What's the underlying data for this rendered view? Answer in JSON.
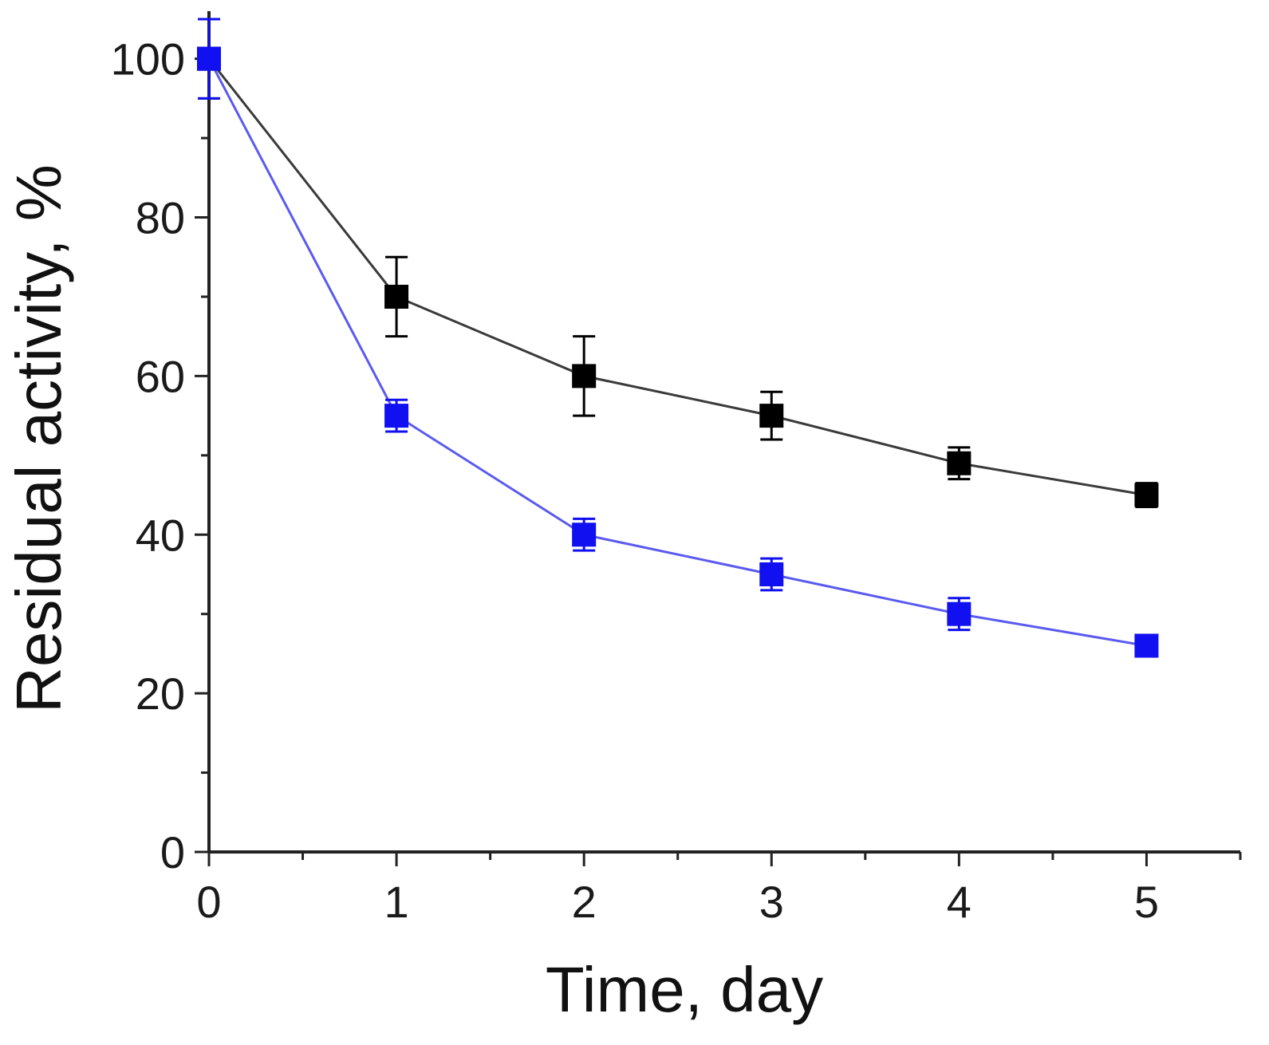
{
  "chart_data": {
    "type": "line",
    "title": "",
    "xlabel": "Time, day",
    "ylabel": "Residual activity, %",
    "xlim": [
      0,
      5.5
    ],
    "ylim": [
      0,
      106
    ],
    "x_ticks": [
      0,
      1,
      2,
      3,
      4,
      5
    ],
    "y_ticks": [
      0,
      20,
      40,
      60,
      80,
      100
    ],
    "x_minor_step": 0.5,
    "y_minor_step": 10,
    "grid": false,
    "series": [
      {
        "name": "black",
        "color": "#000000",
        "line_color": "#3a3a3a",
        "x": [
          0,
          1,
          2,
          3,
          4,
          5
        ],
        "y": [
          100,
          70,
          60,
          55,
          49,
          45
        ],
        "err": [
          5,
          5,
          5,
          3,
          2,
          1.5
        ]
      },
      {
        "name": "blue",
        "color": "#1010f0",
        "line_color": "#5a5af0",
        "x": [
          0,
          1,
          2,
          3,
          4,
          5
        ],
        "y": [
          100,
          55,
          40,
          35,
          30,
          26
        ],
        "err": [
          5,
          2,
          2,
          2,
          2,
          1.2
        ]
      }
    ]
  }
}
